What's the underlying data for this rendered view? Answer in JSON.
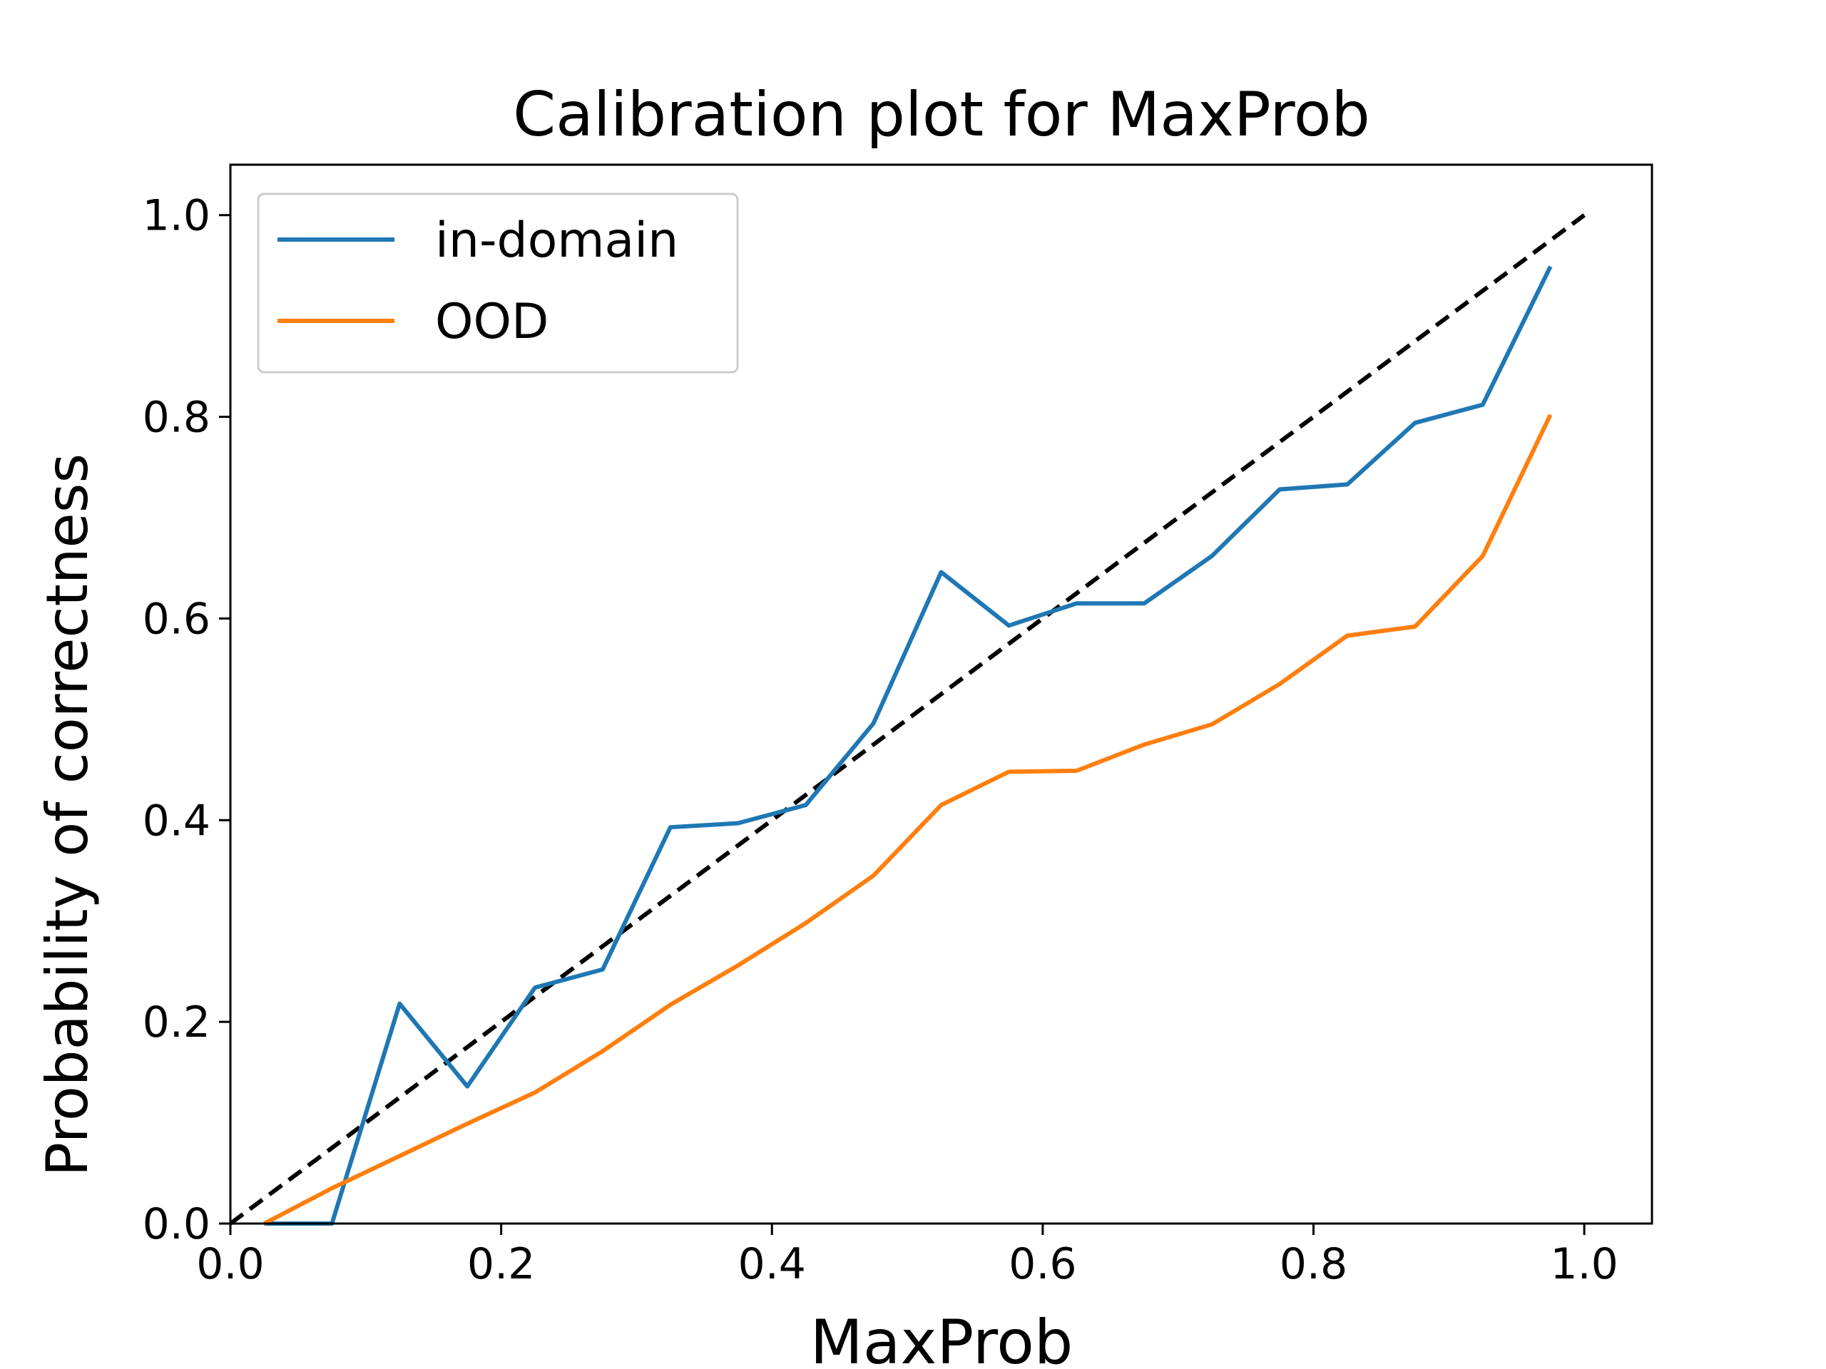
{
  "chart_data": {
    "type": "line",
    "title": "Calibration plot for MaxProb",
    "xlabel": "MaxProb",
    "ylabel": "Probability of correctness",
    "xlim": [
      0.0,
      1.05
    ],
    "ylim": [
      0.0,
      1.05
    ],
    "xticks": [
      0.0,
      0.2,
      0.4,
      0.6,
      0.8,
      1.0
    ],
    "yticks": [
      0.0,
      0.2,
      0.4,
      0.6,
      0.8,
      1.0
    ],
    "xtick_labels": [
      "0.0",
      "0.2",
      "0.4",
      "0.6",
      "0.8",
      "1.0"
    ],
    "ytick_labels": [
      "0.0",
      "0.2",
      "0.4",
      "0.6",
      "0.8",
      "1.0"
    ],
    "grid": false,
    "legend_position": "top-left",
    "x": [
      0.025,
      0.075,
      0.125,
      0.175,
      0.225,
      0.275,
      0.325,
      0.375,
      0.425,
      0.475,
      0.525,
      0.575,
      0.625,
      0.675,
      0.725,
      0.775,
      0.825,
      0.875,
      0.925,
      0.975
    ],
    "series": [
      {
        "name": "in-domain",
        "color": "#1f77b4",
        "values": [
          0.0,
          0.0,
          0.218,
          0.136,
          0.234,
          0.252,
          0.393,
          0.397,
          0.415,
          0.496,
          0.646,
          0.593,
          0.615,
          0.615,
          0.662,
          0.728,
          0.733,
          0.794,
          0.812,
          0.949
        ]
      },
      {
        "name": "OOD",
        "color": "#ff7f0e",
        "values": [
          0.0,
          0.035,
          0.067,
          0.099,
          0.13,
          0.171,
          0.217,
          0.256,
          0.298,
          0.345,
          0.415,
          0.448,
          0.449,
          0.475,
          0.495,
          0.535,
          0.583,
          0.592,
          0.662,
          0.802
        ]
      }
    ],
    "reference_line": {
      "style": "dashed",
      "color": "#000000",
      "x": [
        0.0,
        1.0
      ],
      "y": [
        0.0,
        1.0
      ]
    }
  }
}
